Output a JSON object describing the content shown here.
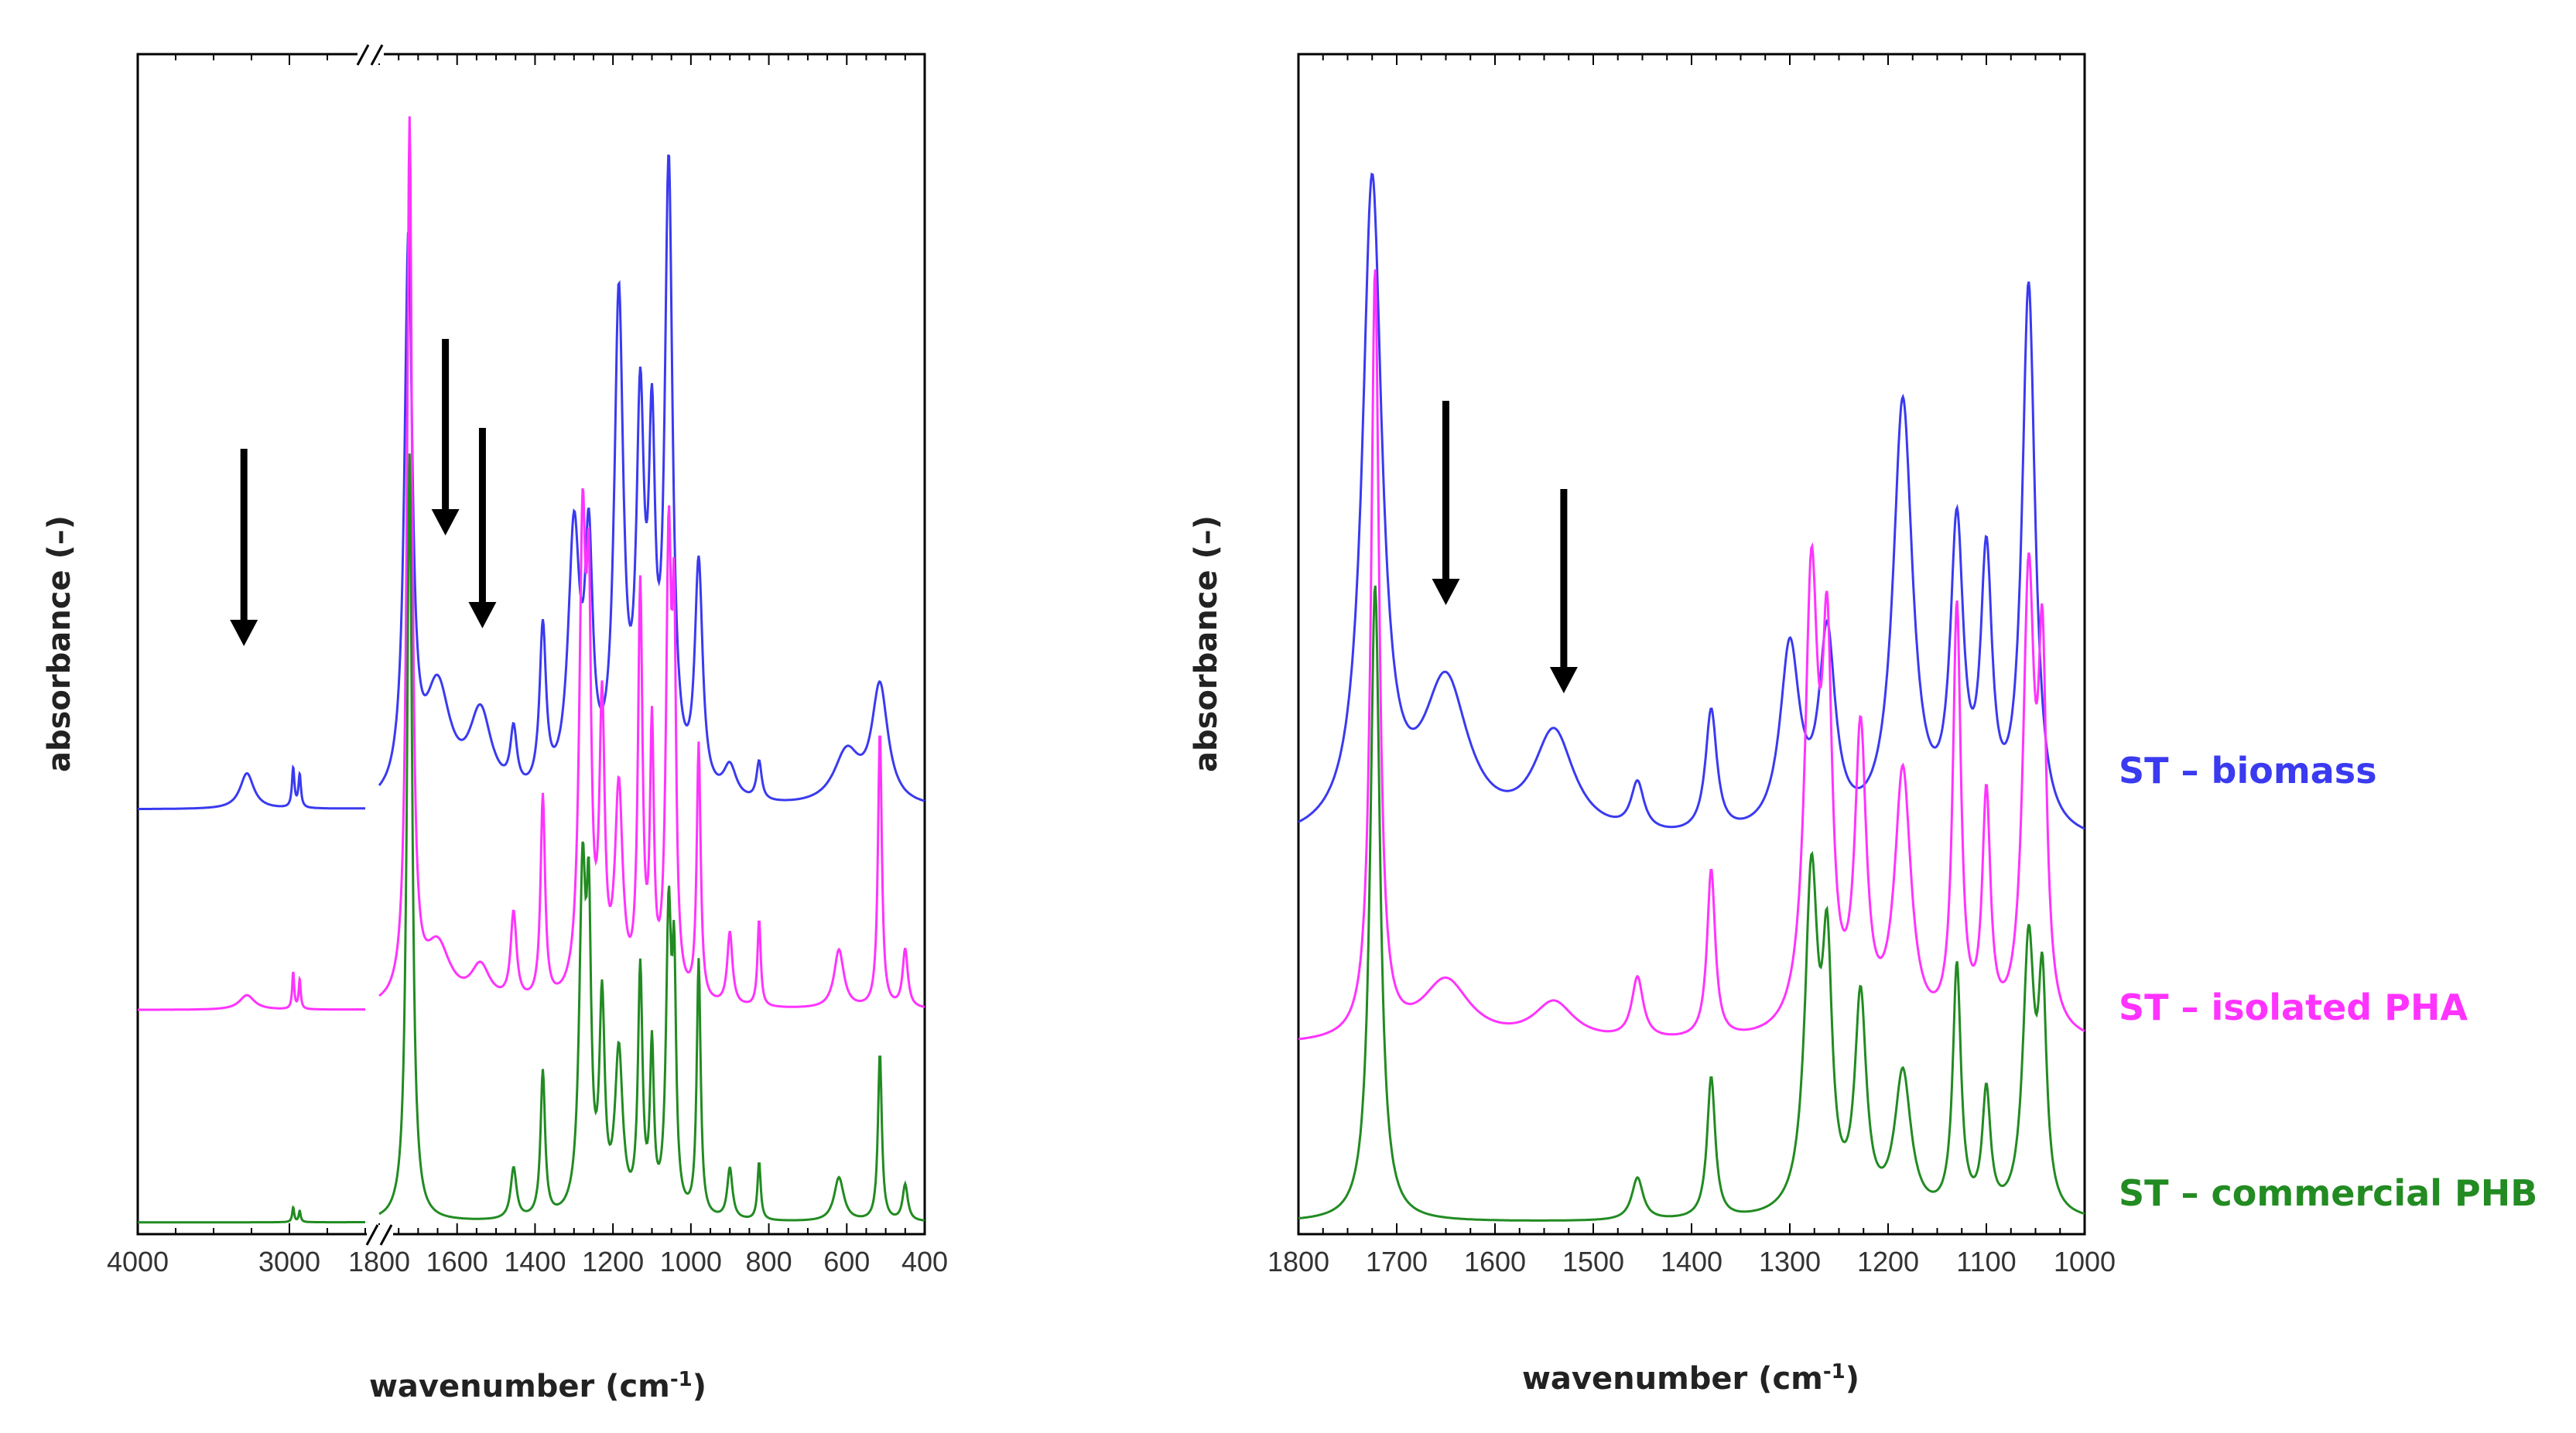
{
  "chart_data": [
    {
      "type": "line",
      "xaxis_broken": true,
      "xlabel": "wavenumber (cm",
      "xlabel_sup": "-1",
      "xlabel_close": ")",
      "ylabel": "absorbance (–)",
      "segments": [
        {
          "xlim": [
            4000,
            2500
          ],
          "ticks": [
            4000,
            3000
          ]
        },
        {
          "xlim": [
            1800,
            400
          ],
          "ticks": [
            1800,
            1600,
            1400,
            1200,
            1000,
            800,
            600,
            400
          ]
        }
      ],
      "series": [
        {
          "name": "ST – biomass",
          "color": "#3a3af0",
          "baseline": 0.36,
          "scale": 0.55,
          "peaks": [
            [
              3280,
              0.055,
              55
            ],
            [
              2975,
              0.06,
              10
            ],
            [
              2932,
              0.05,
              10
            ],
            [
              1725,
              0.85,
              12
            ],
            [
              1650,
              0.17,
              40
            ],
            [
              1540,
              0.13,
              35
            ],
            [
              1455,
              0.09,
              10
            ],
            [
              1380,
              0.25,
              10
            ],
            [
              1300,
              0.4,
              18
            ],
            [
              1262,
              0.35,
              12
            ],
            [
              1185,
              0.75,
              14
            ],
            [
              1130,
              0.55,
              12
            ],
            [
              1100,
              0.48,
              10
            ],
            [
              1057,
              0.95,
              12
            ],
            [
              980,
              0.35,
              12
            ],
            [
              900,
              0.05,
              20
            ],
            [
              825,
              0.06,
              8
            ],
            [
              600,
              0.08,
              40
            ],
            [
              515,
              0.18,
              25
            ]
          ]
        },
        {
          "name": "ST – isolated PHA",
          "color": "#ff33ff",
          "baseline": 0.19,
          "scale": 0.62,
          "peaks": [
            [
              3280,
              0.02,
              60
            ],
            [
              2975,
              0.05,
              8
            ],
            [
              2932,
              0.04,
              8
            ],
            [
              1722,
              1.2,
              8
            ],
            [
              1650,
              0.08,
              40
            ],
            [
              1540,
              0.05,
              30
            ],
            [
              1455,
              0.12,
              9
            ],
            [
              1380,
              0.28,
              7
            ],
            [
              1278,
              0.62,
              10
            ],
            [
              1262,
              0.45,
              7
            ],
            [
              1228,
              0.38,
              8
            ],
            [
              1185,
              0.28,
              12
            ],
            [
              1130,
              0.55,
              7
            ],
            [
              1100,
              0.35,
              6
            ],
            [
              1057,
              0.6,
              8
            ],
            [
              1043,
              0.45,
              6
            ],
            [
              980,
              0.35,
              6
            ],
            [
              900,
              0.1,
              8
            ],
            [
              825,
              0.12,
              5
            ],
            [
              620,
              0.08,
              15
            ],
            [
              515,
              0.38,
              6
            ],
            [
              450,
              0.08,
              8
            ]
          ]
        },
        {
          "name": "ST – commercial PHB",
          "color": "#228b22",
          "baseline": 0.01,
          "scale": 0.62,
          "peaks": [
            [
              2975,
              0.02,
              8
            ],
            [
              2932,
              0.015,
              8
            ],
            [
              1722,
              1.05,
              8
            ],
            [
              1455,
              0.07,
              9
            ],
            [
              1380,
              0.2,
              7
            ],
            [
              1278,
              0.45,
              10
            ],
            [
              1262,
              0.35,
              7
            ],
            [
              1228,
              0.28,
              8
            ],
            [
              1185,
              0.22,
              12
            ],
            [
              1130,
              0.33,
              7
            ],
            [
              1100,
              0.22,
              6
            ],
            [
              1057,
              0.4,
              8
            ],
            [
              1043,
              0.3,
              6
            ],
            [
              980,
              0.35,
              6
            ],
            [
              900,
              0.07,
              8
            ],
            [
              825,
              0.08,
              5
            ],
            [
              620,
              0.06,
              15
            ],
            [
              515,
              0.23,
              6
            ],
            [
              450,
              0.05,
              8
            ]
          ]
        }
      ],
      "annotations": [
        {
          "type": "arrow-down",
          "x": 3300,
          "label": ""
        },
        {
          "type": "arrow-down",
          "x": 1630,
          "label": ""
        },
        {
          "type": "arrow-down",
          "x": 1535,
          "label": ""
        }
      ]
    },
    {
      "type": "line",
      "xlabel": "wavenumber (cm",
      "xlabel_sup": "-1",
      "xlabel_close": ")",
      "ylabel": "absorbance (–)",
      "xlim": [
        1800,
        1000
      ],
      "ticks": [
        1800,
        1700,
        1600,
        1500,
        1400,
        1300,
        1200,
        1100,
        1000
      ],
      "series": [
        {
          "name": "ST – biomass",
          "color": "#3a3af0",
          "baseline": 0.33,
          "scale": 0.58,
          "peaks": [
            [
              1725,
              0.95,
              12
            ],
            [
              1650,
              0.22,
              28
            ],
            [
              1540,
              0.15,
              25
            ],
            [
              1455,
              0.07,
              8
            ],
            [
              1380,
              0.18,
              7
            ],
            [
              1300,
              0.27,
              12
            ],
            [
              1262,
              0.28,
              10
            ],
            [
              1185,
              0.63,
              12
            ],
            [
              1130,
              0.43,
              8
            ],
            [
              1100,
              0.38,
              7
            ],
            [
              1057,
              0.8,
              8
            ]
          ]
        },
        {
          "name": "ST – isolated PHA",
          "color": "#ff33ff",
          "baseline": 0.16,
          "scale": 0.65,
          "peaks": [
            [
              1722,
              1.0,
              5
            ],
            [
              1650,
              0.08,
              30
            ],
            [
              1540,
              0.05,
              25
            ],
            [
              1455,
              0.08,
              7
            ],
            [
              1380,
              0.22,
              5
            ],
            [
              1278,
              0.58,
              8
            ],
            [
              1262,
              0.45,
              6
            ],
            [
              1228,
              0.38,
              7
            ],
            [
              1185,
              0.34,
              10
            ],
            [
              1130,
              0.55,
              5
            ],
            [
              1100,
              0.3,
              5
            ],
            [
              1057,
              0.58,
              7
            ],
            [
              1043,
              0.45,
              5
            ]
          ]
        },
        {
          "name": "ST – commercial PHB",
          "color": "#228b22",
          "baseline": 0.01,
          "scale": 0.6,
          "peaks": [
            [
              1722,
              0.9,
              6
            ],
            [
              1455,
              0.06,
              7
            ],
            [
              1380,
              0.2,
              5
            ],
            [
              1278,
              0.47,
              8
            ],
            [
              1262,
              0.33,
              6
            ],
            [
              1228,
              0.3,
              7
            ],
            [
              1185,
              0.2,
              10
            ],
            [
              1130,
              0.35,
              5
            ],
            [
              1100,
              0.17,
              5
            ],
            [
              1057,
              0.38,
              7
            ],
            [
              1043,
              0.3,
              5
            ]
          ]
        }
      ],
      "annotations": [
        {
          "type": "arrow-down",
          "x": 1650,
          "label": ""
        },
        {
          "type": "arrow-down",
          "x": 1530,
          "label": ""
        }
      ],
      "legend": "right"
    }
  ]
}
